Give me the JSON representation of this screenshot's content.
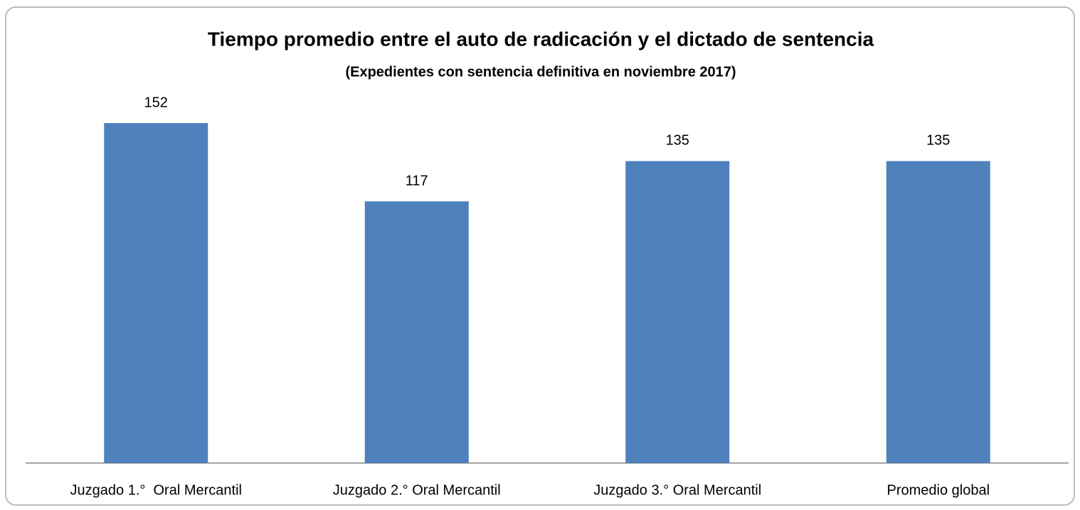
{
  "chart_data": {
    "type": "bar",
    "title": "Tiempo promedio entre el auto de radicación y el dictado de sentencia",
    "subtitle": "(Expedientes con sentencia definitiva en noviembre 2017)",
    "categories": [
      "Juzgado 1.°  Oral Mercantil",
      "Juzgado 2.° Oral Mercantil",
      "Juzgado 3.° Oral Mercantil",
      "Promedio global"
    ],
    "values": [
      152,
      117,
      135,
      135
    ],
    "color": "#4f81bd"
  }
}
